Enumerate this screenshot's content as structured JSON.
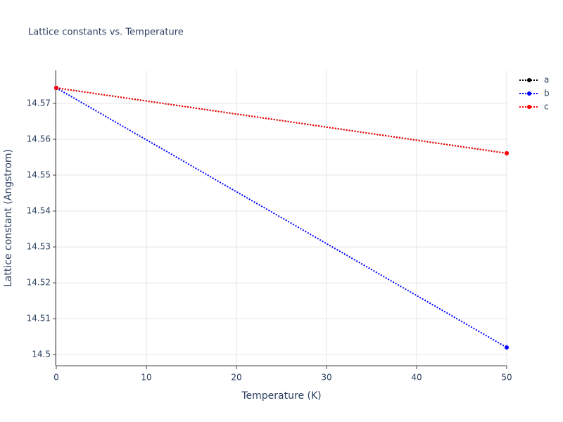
{
  "chart_data": {
    "type": "line",
    "title": "Lattice constants vs. Temperature",
    "x_label": "Temperature (K)",
    "y_label": "Lattice constant (Angstrom)",
    "x": [
      0,
      50
    ],
    "series": [
      {
        "name": "a",
        "color": "#000000",
        "values": [
          14.5743,
          14.5561
        ]
      },
      {
        "name": "b",
        "color": "#0000ff",
        "values": [
          14.5743,
          14.502
        ]
      },
      {
        "name": "c",
        "color": "#ff0000",
        "values": [
          14.5743,
          14.5561
        ]
      }
    ],
    "xlim": [
      0,
      50
    ],
    "xticks": [
      0,
      10,
      20,
      30,
      40,
      50
    ],
    "ylim": [
      14.4969,
      14.5792
    ],
    "yticks": [
      14.5,
      14.51,
      14.52,
      14.53,
      14.54,
      14.55,
      14.56,
      14.57
    ],
    "grid": true,
    "legend": "top-right"
  }
}
